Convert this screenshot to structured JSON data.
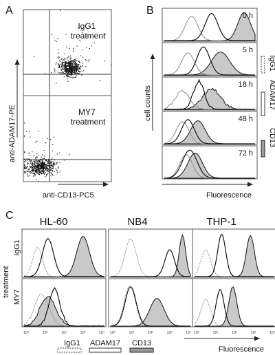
{
  "panels": {
    "a": {
      "label": "A",
      "top_plot_text": "IgG1\ntreatment",
      "bottom_plot_text": "MY7\ntreatment",
      "y_axis_label": "anti-ADAM17-PE",
      "x_axis_label": "anti-CD13-PC5"
    },
    "b": {
      "label": "B",
      "y_axis_label": "cell counts",
      "x_axis_label": "Fluorescence",
      "time_labels": [
        "0 h",
        "5 h",
        "18 h",
        "48 h",
        "72 h"
      ],
      "legend": [
        "IgG1",
        "ADAM17",
        "CD13"
      ]
    },
    "c": {
      "label": "C",
      "column_titles": [
        "HL-60",
        "NB4",
        "THP-1"
      ],
      "row_group_label": "treatment",
      "row_labels": [
        "IgG1",
        "MY7"
      ],
      "x_axis_label": "Fluorescence",
      "tick_labels": [
        "10⁰",
        "10¹",
        "10²",
        "10³",
        "10⁴"
      ],
      "legend": [
        "IgG1",
        "ADAM17",
        "CD13"
      ]
    }
  },
  "colors": {
    "igg1": "#8a8a8a",
    "adam17": "#111111",
    "cd13_fill": "#c9c9c9",
    "cd13_line": "#222222"
  }
}
